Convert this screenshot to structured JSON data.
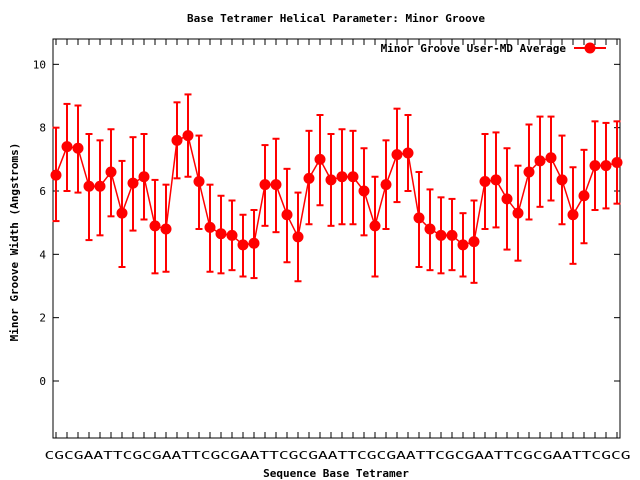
{
  "chart_data": {
    "type": "line",
    "title": "Base Tetramer Helical Parameter: Minor Groove",
    "xlabel": "Sequence Base Tetramer",
    "ylabel": "Minor Groove Width (Angstroms)",
    "ylim": [
      -1.8,
      10.8
    ],
    "yticks": [
      0,
      2,
      4,
      6,
      8,
      10
    ],
    "x_tick_label_first": "C",
    "x_tick_labels_text": "CGCGAATTCGCGAATTCGCGAATTCGCGAATTCGCGAATTCGCGAATTCGCGAATTCGCG",
    "x_tick_label_last": "CG",
    "legend_placement": "top-right",
    "series": [
      {
        "name": "Minor Groove User-MD Average",
        "color": "#ff0000",
        "values": [
          6.5,
          7.4,
          7.35,
          6.15,
          6.15,
          6.6,
          5.3,
          6.25,
          6.45,
          4.9,
          4.8,
          7.6,
          7.75,
          6.3,
          4.85,
          4.65,
          4.6,
          4.3,
          4.35,
          6.2,
          6.2,
          5.25,
          4.55,
          6.4,
          7.0,
          6.35,
          6.45,
          6.45,
          6.0,
          4.9,
          6.2,
          7.15,
          7.2,
          5.15,
          4.8,
          4.6,
          4.6,
          4.3,
          4.4,
          6.3,
          6.35,
          5.75,
          5.3,
          6.6,
          6.95,
          7.05,
          6.35,
          5.25,
          5.85,
          6.8,
          6.8,
          6.9
        ],
        "err_high": [
          8.0,
          8.75,
          8.7,
          7.8,
          7.6,
          7.95,
          6.95,
          7.7,
          7.8,
          6.35,
          6.2,
          8.8,
          9.05,
          7.75,
          6.2,
          5.85,
          5.7,
          5.25,
          5.4,
          7.45,
          7.65,
          6.7,
          5.95,
          7.9,
          8.4,
          7.8,
          7.95,
          7.9,
          7.35,
          6.45,
          7.6,
          8.6,
          8.4,
          6.6,
          6.05,
          5.8,
          5.75,
          5.3,
          5.7,
          7.8,
          7.85,
          7.35,
          6.8,
          8.1,
          8.35,
          8.35,
          7.75,
          6.75,
          7.3,
          8.2,
          8.15,
          8.2
        ],
        "err_low": [
          5.05,
          6.0,
          5.95,
          4.45,
          4.6,
          5.2,
          3.6,
          4.75,
          5.1,
          3.4,
          3.45,
          6.4,
          6.45,
          4.8,
          3.45,
          3.4,
          3.5,
          3.3,
          3.25,
          4.9,
          4.7,
          3.75,
          3.15,
          4.95,
          5.55,
          4.9,
          4.95,
          4.95,
          4.6,
          3.3,
          4.8,
          5.65,
          6.0,
          3.6,
          3.5,
          3.4,
          3.5,
          3.3,
          3.1,
          4.8,
          4.85,
          4.15,
          3.8,
          5.1,
          5.5,
          5.7,
          4.95,
          3.7,
          4.35,
          5.4,
          5.45,
          5.6
        ]
      }
    ]
  }
}
